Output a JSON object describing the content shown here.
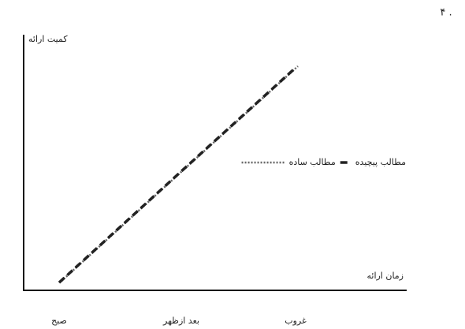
{
  "number": "۴ .",
  "chart_data": {
    "type": "line",
    "y_label": "کمیت ارائه",
    "x_label": "زمان ارائه",
    "categories": [
      "صبح",
      "بعد ازظهر",
      "غروب"
    ],
    "series": [
      {
        "name": "مطالب پیچیده",
        "color": "#222222",
        "style": "dashed",
        "values": [
          3,
          46,
          86
        ]
      },
      {
        "name": "مطالب ساده",
        "color": "#666666",
        "style": "dotted",
        "values": [
          3,
          46,
          86
        ]
      }
    ],
    "ylim": [
      0,
      100
    ]
  }
}
